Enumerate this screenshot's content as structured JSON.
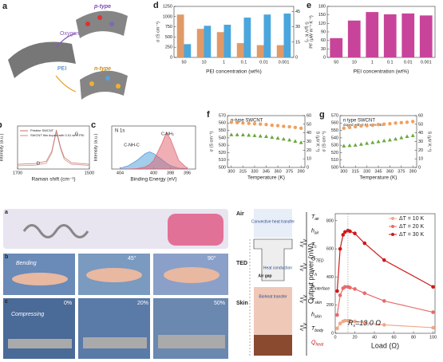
{
  "chart_data": [
    {
      "type": "bar",
      "panel": "d",
      "categories": [
        "50",
        "10",
        "1",
        "0.1",
        "0.01",
        "0.001"
      ],
      "xlabel": "PEI concentration (wt%)",
      "ylabel": "σ (S cm⁻¹)",
      "y2label": "S (μV K⁻¹)",
      "ylim": [
        0,
        1250
      ],
      "yticks": [
        0,
        250,
        500,
        750,
        1000,
        1250
      ],
      "y2lim": [
        0,
        50
      ],
      "y2ticks": [
        0,
        15,
        30,
        45
      ],
      "series": [
        {
          "color": "#e09a68",
          "values": [
            1050,
            700,
            620,
            350,
            300,
            300
          ]
        },
        {
          "color": "#4aa6dc",
          "axis": "y2",
          "values": [
            13,
            31,
            32,
            39,
            42,
            43
          ]
        }
      ]
    },
    {
      "type": "bar",
      "panel": "e",
      "categories": [
        "50",
        "10",
        "1",
        "0.1",
        "0.01",
        "0.001"
      ],
      "xlabel": "PEI concentration (wt%)",
      "ylabel": "PF (μW m⁻¹ K⁻²)",
      "ylim": [
        0,
        180
      ],
      "yticks": [
        0,
        30,
        60,
        90,
        120,
        150,
        180
      ],
      "series": [
        {
          "color": "#c8449a",
          "values": [
            68,
            130,
            160,
            152,
            155,
            148
          ]
        }
      ]
    },
    {
      "type": "line",
      "panel": "b",
      "xlabel": "Raman shift (cm⁻¹)",
      "ylabel": "Intensity (a.u.)",
      "x": [
        1700,
        1650,
        1620,
        1605,
        1592,
        1580,
        1570,
        1550,
        1500
      ],
      "xlim": [
        1700,
        1500
      ],
      "xticks": [
        1700,
        1500
      ],
      "ylim": [
        0,
        1.1
      ],
      "legend": "upper left",
      "annotations": [
        "G",
        "D"
      ],
      "series": [
        {
          "name": "Pristine SWCNT",
          "color": "#c07060",
          "values": [
            0.12,
            0.14,
            0.2,
            0.45,
            1.0,
            0.55,
            0.3,
            0.16,
            0.12
          ]
        },
        {
          "name": "SWCNT film doped with 0.01 wt% PEI",
          "color": "#d08a8a",
          "values": [
            0.08,
            0.1,
            0.15,
            0.4,
            0.95,
            0.5,
            0.25,
            0.12,
            0.09
          ]
        }
      ]
    },
    {
      "type": "area",
      "panel": "c",
      "title": "N 1s",
      "xlabel": "Binding Energy (eV)",
      "ylabel": "Intensity (a.u.)",
      "x": [
        404,
        403,
        402,
        401,
        400.5,
        400,
        399,
        398.5,
        398,
        397,
        396
      ],
      "xlim": [
        405,
        395
      ],
      "xticks": [
        404,
        400,
        398,
        396
      ],
      "ylim": [
        0,
        1
      ],
      "annotations": [
        "C-NH-C",
        "C-NH₂"
      ],
      "series": [
        {
          "color": "#4a9ad8",
          "values": [
            0.02,
            0.08,
            0.2,
            0.36,
            0.4,
            0.36,
            0.22,
            0.14,
            0.08,
            0.02,
            0.01
          ]
        },
        {
          "color": "#e0606a",
          "values": [
            0,
            0,
            0.01,
            0.05,
            0.1,
            0.2,
            0.6,
            0.85,
            0.7,
            0.2,
            0.02
          ]
        }
      ]
    },
    {
      "type": "scatter",
      "panel": "f",
      "title": "p-type SWCNT",
      "xlabel": "Temperature (K)",
      "ylabel": "σ (S cm⁻¹)",
      "y2label": "S (μV K⁻¹)",
      "x": [
        300,
        307.5,
        315,
        322.5,
        330,
        337.5,
        345,
        352.5,
        360,
        367.5,
        375,
        382.5,
        390
      ],
      "xlim": [
        295,
        395
      ],
      "xticks": [
        300,
        315,
        330,
        345,
        360,
        375,
        390
      ],
      "ylim": [
        500,
        570
      ],
      "yticks": [
        500,
        510,
        520,
        530,
        540,
        550,
        560,
        570
      ],
      "y2lim": [
        0,
        60
      ],
      "y2ticks": [
        0,
        10,
        20,
        30,
        40,
        50,
        60
      ],
      "series": [
        {
          "color": "#f0a060",
          "marker": "circle",
          "values": [
            561,
            560.5,
            560,
            559.5,
            559,
            558.5,
            558,
            557,
            556.5,
            555.5,
            555,
            554,
            553
          ]
        },
        {
          "color": "#6aa83a",
          "marker": "triangle",
          "axis": "y2",
          "values": [
            38,
            38,
            37.8,
            37.5,
            37,
            36.5,
            36,
            35,
            34,
            33,
            32,
            30.5,
            29
          ]
        }
      ]
    },
    {
      "type": "scatter",
      "panel": "g",
      "title": "n type SWCNT",
      "subtitle": "doped with 0.01 wt% PEI",
      "xlabel": "Temperature (K)",
      "ylabel": "σ (S cm⁻¹)",
      "y2label": "S (μV K⁻¹)",
      "x": [
        300,
        307.5,
        315,
        322.5,
        330,
        337.5,
        345,
        352.5,
        360,
        367.5,
        375,
        382.5,
        390
      ],
      "xlim": [
        295,
        395
      ],
      "xticks": [
        300,
        315,
        330,
        345,
        360,
        375,
        390
      ],
      "ylim": [
        500,
        570
      ],
      "yticks": [
        500,
        510,
        520,
        530,
        540,
        550,
        560,
        570
      ],
      "y2lim": [
        0,
        60
      ],
      "y2ticks": [
        0,
        10,
        20,
        30,
        40,
        50,
        60
      ],
      "series": [
        {
          "color": "#f0a060",
          "marker": "circle",
          "values": [
            553,
            554,
            555,
            556,
            556.5,
            557,
            558,
            558.5,
            559,
            560,
            560.5,
            561,
            562
          ]
        },
        {
          "color": "#6aa83a",
          "marker": "triangle",
          "axis": "y2",
          "values": [
            25,
            25.5,
            26,
            27,
            28,
            29,
            30,
            31,
            32,
            33,
            34.5,
            36,
            37
          ]
        }
      ]
    },
    {
      "type": "line",
      "xlabel": "Load (Ω)",
      "ylabel": "Output power (nW)",
      "x": [
        2,
        5,
        8,
        10,
        13,
        15,
        20,
        30,
        50,
        100
      ],
      "xlim": [
        0,
        102
      ],
      "xticks": [
        0,
        20,
        40,
        60,
        80,
        100
      ],
      "ylim": [
        0,
        850
      ],
      "yticks": [
        0,
        200,
        400,
        600,
        800
      ],
      "legend": "upper right",
      "vline": 13,
      "annotation": {
        "symbol": "R",
        "sub": "s",
        "text": "=13.0 Ω"
      },
      "series": [
        {
          "name": "ΔT = 10 K",
          "color": "#f0a888",
          "marker": "circle",
          "values": [
            35,
            70,
            85,
            90,
            90,
            88,
            85,
            75,
            60,
            40
          ]
        },
        {
          "name": "ΔT = 20 K",
          "color": "#e86a6a",
          "marker": "circle",
          "values": [
            130,
            270,
            320,
            330,
            330,
            325,
            315,
            285,
            230,
            150
          ]
        },
        {
          "name": "ΔT = 30 K",
          "color": "#d01818",
          "marker": "circle",
          "values": [
            300,
            600,
            700,
            720,
            730,
            725,
            710,
            640,
            520,
            330
          ]
        }
      ]
    }
  ],
  "figure": {
    "panel_a": {
      "label": "a",
      "texts": [
        "p-type",
        "Oxygen",
        "PEI",
        "n-type"
      ]
    },
    "photos": {
      "labels": [
        "a",
        "b",
        "c"
      ],
      "bending": "Bending",
      "angles": [
        "45°",
        "90°"
      ],
      "compressing": "Compressing",
      "strains": [
        "0%",
        "20%",
        "50%"
      ]
    },
    "thermal": {
      "layers": [
        "Air",
        "TED",
        "Skin"
      ],
      "convective": "Convective heat transfer",
      "conduction": "Heat conduction",
      "gap": "Air gap",
      "bioheat": "Bioheat transfer",
      "symbols": [
        {
          "symbol": "T",
          "sub": "air"
        },
        {
          "symbol": "h",
          "sub": "air"
        },
        {
          "symbol": "T",
          "sub": "c"
        },
        {
          "symbol": "G",
          "sub": "TED"
        },
        {
          "symbol": "T",
          "sub": "h"
        },
        {
          "symbol": "h",
          "sub": "interface"
        },
        {
          "symbol": "T",
          "sub": "skin"
        },
        {
          "symbol": "h",
          "sub": "skin"
        },
        {
          "symbol": "T",
          "sub": "body"
        },
        {
          "symbol": "Q",
          "sub": "heat"
        }
      ]
    }
  }
}
